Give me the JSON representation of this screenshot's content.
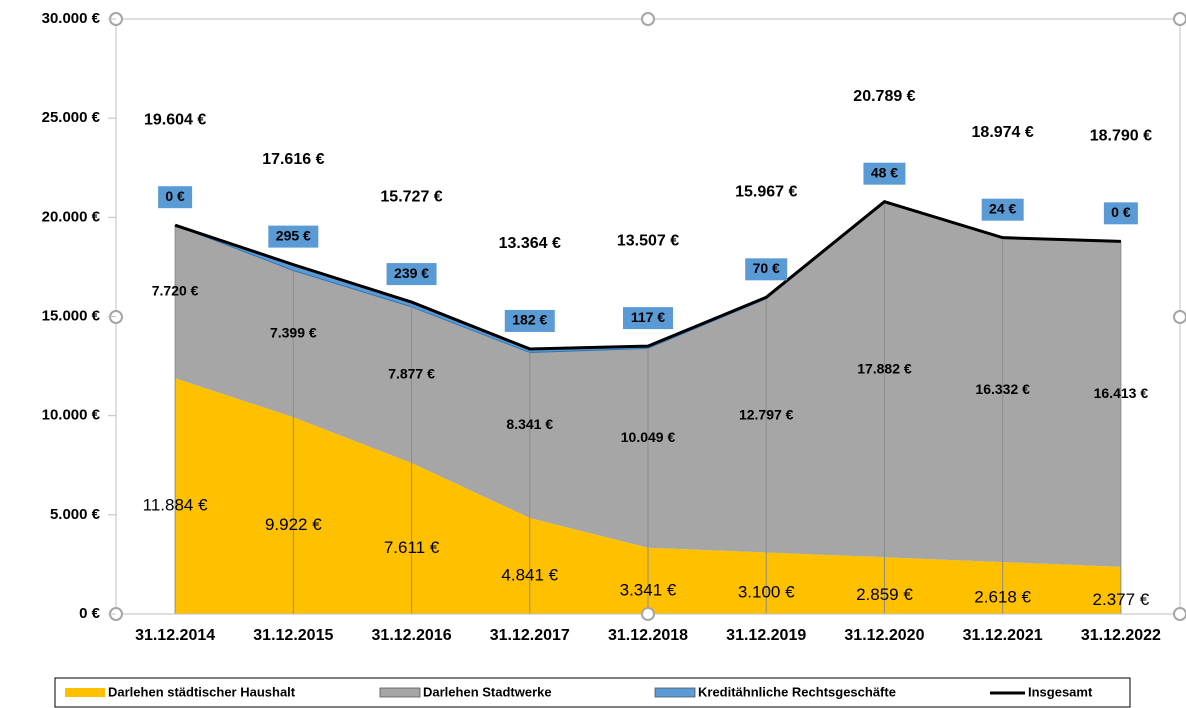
{
  "chart_data": {
    "type": "stacked_area",
    "categories": [
      "31.12.2014",
      "31.12.2015",
      "31.12.2016",
      "31.12.2017",
      "31.12.2018",
      "31.12.2019",
      "31.12.2020",
      "31.12.2021",
      "31.12.2022"
    ],
    "series": [
      {
        "name": "Darlehen städtischer Haushalt",
        "color": "#ffc000",
        "values": [
          11884,
          9922,
          7611,
          4841,
          3341,
          3100,
          2859,
          2618,
          2377
        ],
        "value_labels": [
          "11.884 €",
          "9.922 €",
          "7.611 €",
          "4.841 €",
          "3.341 €",
          "3.100 €",
          "2.859 €",
          "2.618 €",
          "2.377 €"
        ]
      },
      {
        "name": "Darlehen Stadtwerke",
        "color": "#a6a6a6",
        "values": [
          7720,
          7399,
          7877,
          8341,
          10049,
          12797,
          17882,
          16332,
          16413
        ],
        "value_labels": [
          "7.720 €",
          "7.399 €",
          "7.877 €",
          "8.341 €",
          "10.049 €",
          "12.797 €",
          "17.882 €",
          "16.332 €",
          "16.413 €"
        ]
      },
      {
        "name": "Kreditähnliche Rechtsgeschäfte",
        "color": "#5b9bd5",
        "values": [
          0,
          295,
          239,
          182,
          117,
          70,
          48,
          24,
          0
        ],
        "value_labels": [
          "0 €",
          "295 €",
          "239 €",
          "182 €",
          "117 €",
          "70 €",
          "48 €",
          "24 €",
          "0 €"
        ]
      }
    ],
    "line_series": {
      "name": "Insgesamt",
      "color": "#000000",
      "values": [
        19604,
        17616,
        15727,
        13364,
        13507,
        15967,
        20789,
        18974,
        18790
      ],
      "value_labels": [
        "19.604 €",
        "17.616 €",
        "15.727 €",
        "13.364 €",
        "13.507 €",
        "15.967 €",
        "20.789 €",
        "18.974 €",
        "18.790 €"
      ]
    },
    "ylim": [
      0,
      30000
    ],
    "yticks": [
      {
        "value": 0,
        "label": "0 €"
      },
      {
        "value": 5000,
        "label": "5.000 €"
      },
      {
        "value": 10000,
        "label": "10.000 €"
      },
      {
        "value": 15000,
        "label": "15.000 €"
      },
      {
        "value": 20000,
        "label": "20.000 €"
      },
      {
        "value": 25000,
        "label": "25.000 €"
      },
      {
        "value": 30000,
        "label": "30.000 €"
      }
    ],
    "legend": "bottom"
  }
}
